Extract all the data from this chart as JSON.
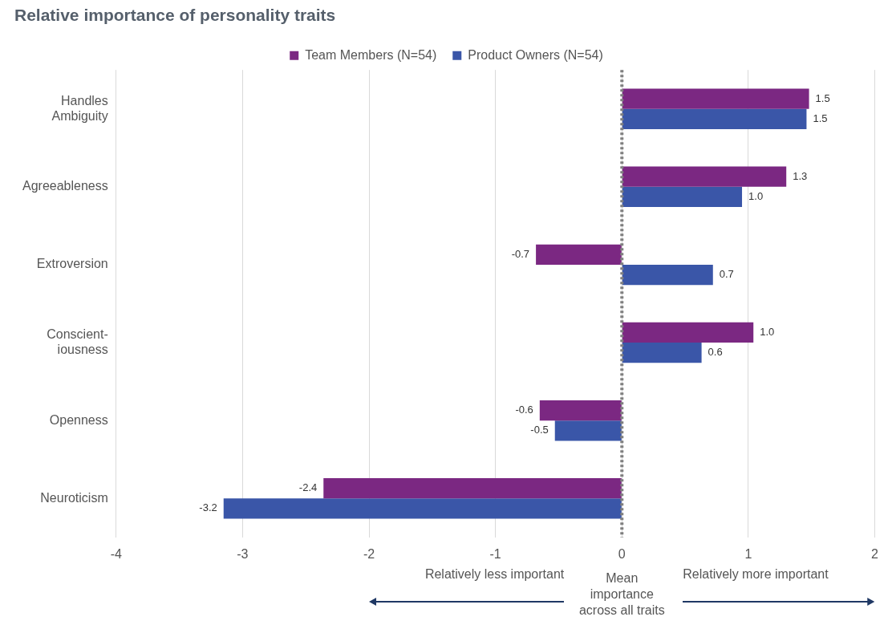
{
  "chart_data": {
    "type": "bar",
    "orientation": "horizontal",
    "title": "Relative importance of personality traits",
    "categories": [
      "Handles\nAmbiguity",
      "Agreeableness",
      "Extroversion",
      "Conscient-\niousness",
      "Openness",
      "Neuroticism"
    ],
    "series": [
      {
        "name": "Team Members (N=54)",
        "color": "#7b2882",
        "values": [
          1.48,
          1.3,
          -0.68,
          1.04,
          -0.65,
          -2.36
        ],
        "value_labels": [
          "1.5",
          "1.3",
          "-0.7",
          "1.0",
          "-0.6",
          "-2.4"
        ]
      },
      {
        "name": "Product Owners (N=54)",
        "color": "#3a56a8",
        "values": [
          1.46,
          0.95,
          0.72,
          0.63,
          -0.53,
          -3.15
        ],
        "value_labels": [
          "1.5",
          "1.0",
          "0.7",
          "0.6",
          "-0.5",
          "-3.2"
        ]
      }
    ],
    "xlim": [
      -4,
      2
    ],
    "xticks": [
      -4,
      -3,
      -2,
      -1,
      0,
      1,
      2
    ],
    "grid": "x",
    "legend": "top",
    "ref_lines": [
      {
        "axis": "x",
        "value": 0,
        "line_style": "dotted",
        "color": "#7f7f7f"
      }
    ],
    "annotations": [
      "Relatively less important",
      "Mean importance across all traits",
      "Relatively more important"
    ]
  }
}
